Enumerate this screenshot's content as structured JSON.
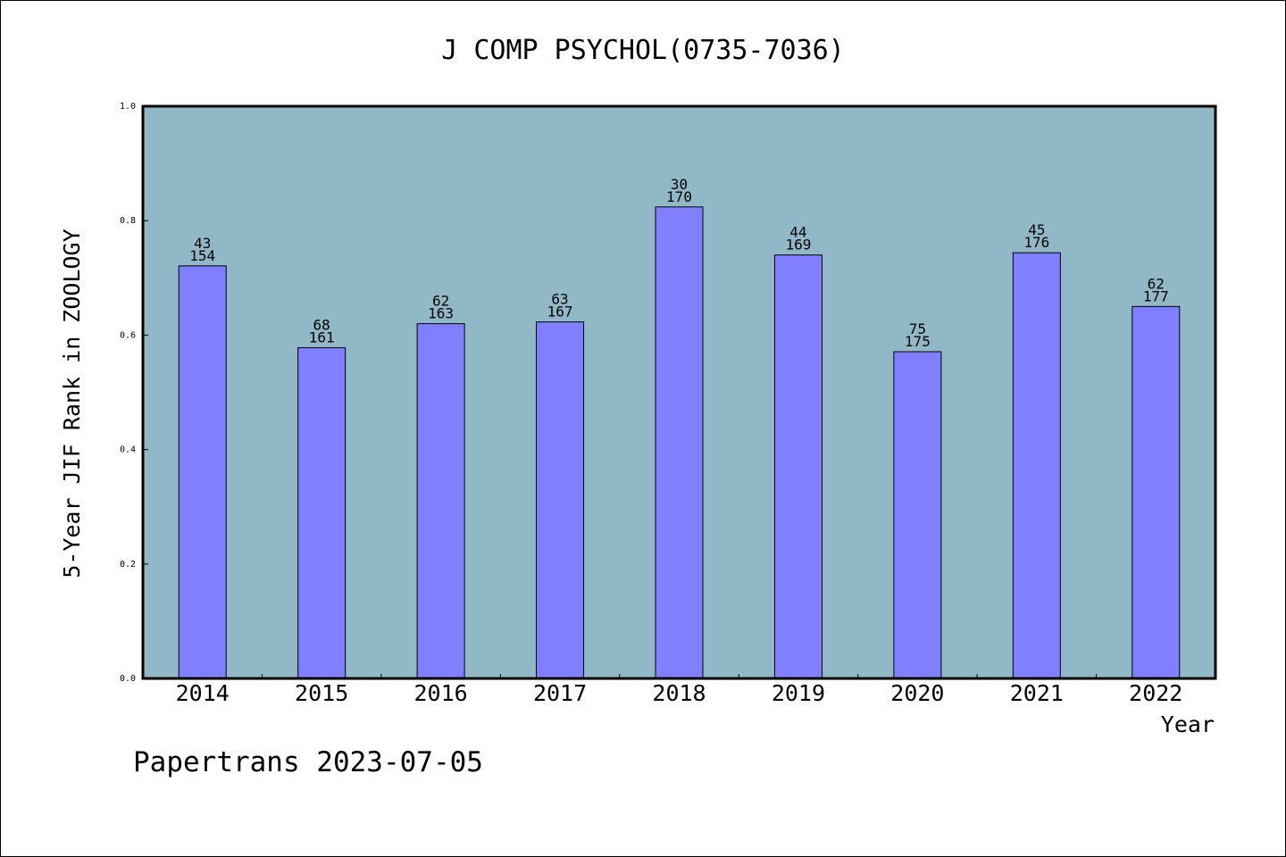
{
  "chart_data": {
    "type": "bar",
    "title": "J COMP PSYCHOL(0735-7036)",
    "xlabel": "Year",
    "ylabel": "5-Year JIF Rank in ZOOLOGY",
    "ylim": [
      0,
      1
    ],
    "yticks": [
      "0.0",
      "0.2",
      "0.4",
      "0.6",
      "0.8",
      "1.0"
    ],
    "grid": false,
    "categories": [
      "2014",
      "2015",
      "2016",
      "2017",
      "2018",
      "2019",
      "2020",
      "2021",
      "2022"
    ],
    "values": [
      0.721,
      0.578,
      0.62,
      0.623,
      0.824,
      0.74,
      0.571,
      0.744,
      0.65
    ],
    "rank": [
      "43",
      "68",
      "62",
      "63",
      "30",
      "44",
      "75",
      "45",
      "62"
    ],
    "total": [
      "154",
      "161",
      "163",
      "167",
      "170",
      "169",
      "175",
      "176",
      "177"
    ],
    "colors": {
      "plot_bg": "#90b8c6",
      "bar": "#8080ff",
      "bar_edge": "#000000"
    }
  },
  "footer": "Papertrans 2023-07-05"
}
